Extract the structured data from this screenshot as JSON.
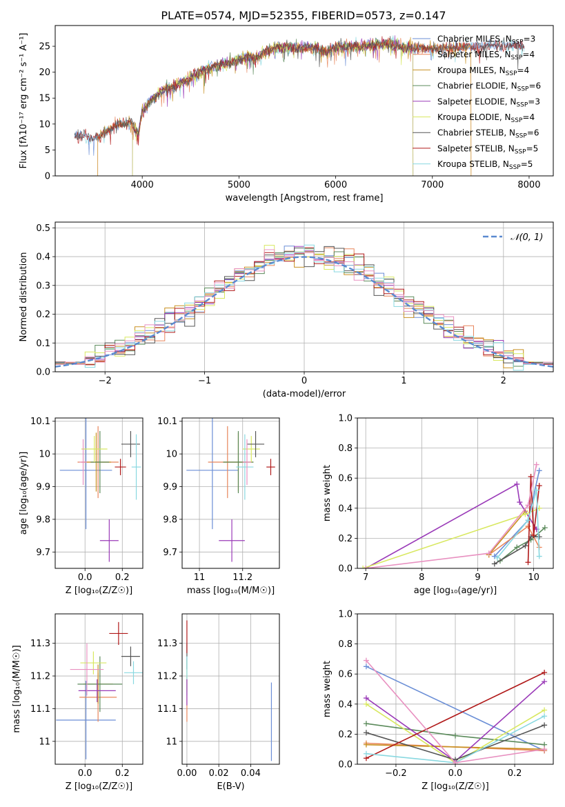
{
  "title": "PLATE=0574, MJD=52355, FIBERID=0573, z=0.147",
  "colors": {
    "Chabrier MILES": "#6a8ed6",
    "Salpeter MILES": "#e8855a",
    "Kroupa MILES": "#c89020",
    "Chabrier ELODIE": "#5a8a5a",
    "Salpeter ELODIE": "#9a3ab8",
    "Kroupa ELODIE": "#d8e860",
    "Chabrier STELIB": "#555555",
    "Salpeter STELIB": "#b01818",
    "Kroupa STELIB": "#88d8e0",
    "pink": "#e890c0",
    "gaussian": "#5a8ad0"
  },
  "chart_data": [
    {
      "id": "spectrum",
      "type": "line",
      "xlabel": "wavelength [Angstrom, rest frame]",
      "ylabel": "Flux [fλ10⁻¹⁷ erg cm⁻² s⁻¹ A⁻¹]",
      "xlim": [
        3100,
        8250
      ],
      "ylim": [
        0,
        29
      ],
      "xticks": [
        4000,
        5000,
        6000,
        7000,
        8000
      ],
      "yticks": [
        0,
        5,
        10,
        15,
        20,
        25
      ],
      "legend_position": "top-right",
      "legend": [
        {
          "name": "Chabrier MILES",
          "label": "Chabrier MILES, N",
          "sub": "SSP",
          "suffix": "=3"
        },
        {
          "name": "Salpeter MILES",
          "label": "Salpeter MILES, N",
          "sub": "SSP",
          "suffix": "=4"
        },
        {
          "name": "Kroupa MILES",
          "label": "Kroupa MILES, N",
          "sub": "SSP",
          "suffix": "=4"
        },
        {
          "name": "Chabrier ELODIE",
          "label": "Chabrier ELODIE, N",
          "sub": "SSP",
          "suffix": "=6"
        },
        {
          "name": "Salpeter ELODIE",
          "label": "Salpeter ELODIE, N",
          "sub": "SSP",
          "suffix": "=3"
        },
        {
          "name": "Kroupa ELODIE",
          "label": "Kroupa ELODIE, N",
          "sub": "SSP",
          "suffix": "=4"
        },
        {
          "name": "Chabrier STELIB",
          "label": "Chabrier STELIB, N",
          "sub": "SSP",
          "suffix": "=6"
        },
        {
          "name": "Salpeter STELIB",
          "label": "Salpeter STELIB, N",
          "sub": "SSP",
          "suffix": "=5"
        },
        {
          "name": "Kroupa STELIB",
          "label": "Kroupa STELIB, N",
          "sub": "SSP",
          "suffix": "=5"
        }
      ],
      "continuum": [
        [
          3300,
          7.6
        ],
        [
          3400,
          7.8
        ],
        [
          3500,
          7.0
        ],
        [
          3600,
          8.2
        ],
        [
          3700,
          9.5
        ],
        [
          3800,
          10.0
        ],
        [
          3880,
          10.5
        ],
        [
          3920,
          9.0
        ],
        [
          3960,
          8.0
        ],
        [
          4000,
          12.5
        ],
        [
          4100,
          14.8
        ],
        [
          4200,
          16.5
        ],
        [
          4300,
          17.0
        ],
        [
          4400,
          18.0
        ],
        [
          4500,
          18.8
        ],
        [
          4600,
          20.0
        ],
        [
          4700,
          20.8
        ],
        [
          4800,
          21.3
        ],
        [
          4900,
          21.8
        ],
        [
          5000,
          22.4
        ],
        [
          5100,
          23.0
        ],
        [
          5170,
          22.6
        ],
        [
          5250,
          23.8
        ],
        [
          5400,
          24.8
        ],
        [
          5600,
          24.6
        ],
        [
          5800,
          24.8
        ],
        [
          5890,
          23.8
        ],
        [
          6000,
          24.8
        ],
        [
          6200,
          25.0
        ],
        [
          6400,
          25.2
        ],
        [
          6563,
          25.6
        ],
        [
          6700,
          24.7
        ],
        [
          6900,
          24.6
        ],
        [
          7100,
          24.5
        ],
        [
          7300,
          24.8
        ],
        [
          7500,
          25.0
        ],
        [
          7700,
          25.2
        ],
        [
          7900,
          25.0
        ]
      ],
      "wavelength_limits": {
        "Salpeter MILES": [
          3540,
          7400
        ],
        "Kroupa MILES": [
          3540,
          7400
        ],
        "Salpeter ELODIE": [
          3900,
          6800
        ],
        "Kroupa ELODIE": [
          3900,
          6800
        ],
        "Chabrier ELODIE": [
          3900,
          6800
        ]
      }
    },
    {
      "id": "residuals",
      "type": "histogram",
      "xlabel": "(data-model)/error",
      "ylabel": "Normed distribution",
      "xlim": [
        -2.5,
        2.5
      ],
      "ylim": [
        0,
        0.52
      ],
      "xticks": [
        -2,
        -1,
        0,
        1,
        2
      ],
      "yticks": [
        0.0,
        0.1,
        0.2,
        0.3,
        0.4,
        0.5
      ],
      "legend_position": "top-right",
      "legend": [
        {
          "name": "N(0,1)",
          "label": "𝒩(0, 1)"
        }
      ],
      "bin_width": 0.1,
      "bin_start": -2.5
    },
    {
      "id": "z-vs-age",
      "type": "scatter",
      "xlabel": "Z [log₁₀(Z/Z☉)]",
      "ylabel": "age  [log₁₀(age/yr)]",
      "xlim": [
        -0.16,
        0.31
      ],
      "ylim": [
        9.65,
        10.11
      ],
      "xticks": [
        0.0,
        0.2
      ],
      "yticks": [
        9.7,
        9.8,
        9.9,
        10.0,
        10.1
      ],
      "points": [
        {
          "series": "Chabrier MILES",
          "x": 0.005,
          "y": 9.95,
          "xerr": 0.14,
          "yerr": 0.18
        },
        {
          "series": "Salpeter MILES",
          "x": 0.07,
          "y": 9.975,
          "xerr": 0.11,
          "yerr": 0.11
        },
        {
          "series": "Kroupa MILES",
          "x": 0.06,
          "y": 9.975,
          "xerr": 0.08,
          "yerr": 0.09
        },
        {
          "series": "Chabrier ELODIE",
          "x": 0.08,
          "y": 9.975,
          "xerr": 0.05,
          "yerr": 0.095
        },
        {
          "series": "Salpeter ELODIE",
          "x": 0.13,
          "y": 9.735,
          "xerr": 0.05,
          "yerr": 0.065
        },
        {
          "series": "Kroupa ELODIE",
          "x": 0.05,
          "y": 10.015,
          "xerr": 0.07,
          "yerr": 0.04
        },
        {
          "series": "Chabrier STELIB",
          "x": 0.245,
          "y": 10.03,
          "xerr": 0.05,
          "yerr": 0.04
        },
        {
          "series": "Salpeter STELIB",
          "x": 0.19,
          "y": 9.96,
          "xerr": 0.03,
          "yerr": 0.025
        },
        {
          "series": "Kroupa STELIB",
          "x": 0.275,
          "y": 9.96,
          "xerr": 0.025,
          "yerr": 0.1
        },
        {
          "series": "pink",
          "x": -0.01,
          "y": 9.975,
          "xerr": 0.02,
          "yerr": 0.07
        }
      ]
    },
    {
      "id": "mass-vs-age",
      "type": "scatter",
      "xlabel": "mass [log₁₀(M/M☉)]",
      "ylabel": "",
      "xlim": [
        10.92,
        11.37
      ],
      "ylim": [
        9.65,
        10.11
      ],
      "xticks": [
        11.0,
        11.2
      ],
      "yticks": [
        9.7,
        9.8,
        9.9,
        10.0,
        10.1
      ],
      "points": [
        {
          "series": "Chabrier MILES",
          "x": 11.06,
          "y": 9.95,
          "xerr": 0.12,
          "yerr": 0.18
        },
        {
          "series": "Salpeter MILES",
          "x": 11.13,
          "y": 9.975,
          "xerr": 0.09,
          "yerr": 0.11
        },
        {
          "series": "Kroupa MILES",
          "x": 11.18,
          "y": 9.975,
          "xerr": 0.07,
          "yerr": 0.09
        },
        {
          "series": "Chabrier ELODIE",
          "x": 11.18,
          "y": 9.975,
          "xerr": 0.07,
          "yerr": 0.095
        },
        {
          "series": "Salpeter ELODIE",
          "x": 11.15,
          "y": 9.735,
          "xerr": 0.06,
          "yerr": 0.065
        },
        {
          "series": "Kroupa ELODIE",
          "x": 11.24,
          "y": 10.015,
          "xerr": 0.04,
          "yerr": 0.04
        },
        {
          "series": "Chabrier STELIB",
          "x": 11.26,
          "y": 10.03,
          "xerr": 0.04,
          "yerr": 0.04
        },
        {
          "series": "Salpeter STELIB",
          "x": 11.33,
          "y": 9.96,
          "xerr": 0.02,
          "yerr": 0.025
        },
        {
          "series": "Kroupa STELIB",
          "x": 11.21,
          "y": 9.96,
          "xerr": 0.04,
          "yerr": 0.1
        },
        {
          "series": "pink",
          "x": 11.22,
          "y": 9.975,
          "xerr": 0.02,
          "yerr": 0.07
        }
      ]
    },
    {
      "id": "age-vs-weight",
      "type": "line",
      "xlabel": "age  [log₁₀(age/yr)]",
      "ylabel": "mass weight",
      "xlim": [
        6.85,
        10.35
      ],
      "ylim": [
        0,
        1
      ],
      "xticks": [
        7,
        8,
        9,
        10
      ],
      "yticks": [
        0.0,
        0.2,
        0.4,
        0.6,
        0.8,
        1.0
      ],
      "series": [
        {
          "name": "Chabrier MILES",
          "points": [
            [
              9.3,
              0.08
            ],
            [
              9.9,
              0.32
            ],
            [
              10.1,
              0.65
            ]
          ]
        },
        {
          "name": "Salpeter MILES",
          "points": [
            [
              9.2,
              0.09
            ],
            [
              9.9,
              0.28
            ],
            [
              10.1,
              0.14
            ]
          ]
        },
        {
          "name": "Kroupa MILES",
          "points": [
            [
              9.2,
              0.09
            ],
            [
              9.85,
              0.38
            ],
            [
              10.05,
              0.26
            ]
          ]
        },
        {
          "name": "Chabrier ELODIE",
          "points": [
            [
              9.4,
              0.05
            ],
            [
              9.7,
              0.14
            ],
            [
              9.95,
              0.19
            ],
            [
              10.2,
              0.27
            ]
          ]
        },
        {
          "name": "Salpeter ELODIE",
          "points": [
            [
              7.0,
              0.0
            ],
            [
              9.7,
              0.56
            ],
            [
              9.75,
              0.44
            ],
            [
              10.05,
              0.26
            ]
          ]
        },
        {
          "name": "Kroupa ELODIE",
          "points": [
            [
              6.95,
              0.0
            ],
            [
              9.85,
              0.36
            ],
            [
              10.1,
              0.4
            ]
          ]
        },
        {
          "name": "Chabrier STELIB",
          "points": [
            [
              9.3,
              0.03
            ],
            [
              9.85,
              0.15
            ],
            [
              9.95,
              0.21
            ],
            [
              10.1,
              0.21
            ]
          ]
        },
        {
          "name": "Salpeter STELIB",
          "points": [
            [
              9.9,
              0.04
            ],
            [
              9.95,
              0.61
            ],
            [
              10.0,
              0.22
            ],
            [
              10.1,
              0.55
            ]
          ]
        },
        {
          "name": "Kroupa STELIB",
          "points": [
            [
              9.35,
              0.07
            ],
            [
              9.9,
              0.32
            ],
            [
              10.05,
              0.52
            ],
            [
              10.1,
              0.08
            ]
          ]
        },
        {
          "name": "pink",
          "points": [
            [
              7.0,
              0.0
            ],
            [
              9.2,
              0.1
            ],
            [
              9.9,
              0.42
            ],
            [
              10.05,
              0.69
            ]
          ]
        }
      ]
    },
    {
      "id": "z-vs-mass",
      "type": "scatter",
      "xlabel": "Z [log₁₀(Z/Z☉)]",
      "ylabel": "mass [log₁₀(M/M☉)]",
      "xlim": [
        -0.16,
        0.31
      ],
      "ylim": [
        10.93,
        11.39
      ],
      "xticks": [
        0.0,
        0.2
      ],
      "yticks": [
        11.0,
        11.1,
        11.2,
        11.3
      ],
      "points": [
        {
          "series": "Chabrier MILES",
          "x": 0.005,
          "y": 11.065,
          "xerr": 0.16,
          "yerr": 0.12
        },
        {
          "series": "Salpeter MILES",
          "x": 0.07,
          "y": 11.135,
          "xerr": 0.1,
          "yerr": 0.075
        },
        {
          "series": "Kroupa MILES",
          "x": 0.07,
          "y": 11.175,
          "xerr": 0.08,
          "yerr": 0.06
        },
        {
          "series": "Chabrier ELODIE",
          "x": 0.08,
          "y": 11.175,
          "xerr": 0.12,
          "yerr": 0.085
        },
        {
          "series": "Salpeter ELODIE",
          "x": 0.065,
          "y": 11.155,
          "xerr": 0.1,
          "yerr": 0.035
        },
        {
          "series": "Kroupa ELODIE",
          "x": 0.045,
          "y": 11.24,
          "xerr": 0.07,
          "yerr": 0.035
        },
        {
          "series": "Chabrier STELIB",
          "x": 0.245,
          "y": 11.26,
          "xerr": 0.05,
          "yerr": 0.03
        },
        {
          "series": "Salpeter STELIB",
          "x": 0.18,
          "y": 11.33,
          "xerr": 0.05,
          "yerr": 0.035
        },
        {
          "series": "Kroupa STELIB",
          "x": 0.26,
          "y": 11.21,
          "xerr": 0.05,
          "yerr": 0.035
        },
        {
          "series": "pink",
          "x": 0.01,
          "y": 11.22,
          "xerr": 0.09,
          "yerr": 0.08
        }
      ]
    },
    {
      "id": "ebv-vs-mass",
      "type": "scatter",
      "xlabel": "E(B-V)",
      "ylabel": "",
      "xlim": [
        -0.003,
        0.058
      ],
      "ylim": [
        10.93,
        11.39
      ],
      "xticks": [
        0.0,
        0.02,
        0.04
      ],
      "yticks": [
        11.0,
        11.1,
        11.2,
        11.3
      ],
      "points": [
        {
          "series": "Chabrier MILES",
          "x": 0.053,
          "y": 11.06,
          "xerr": 0,
          "yerr": 0.12
        },
        {
          "series": "Salpeter MILES",
          "x": 0.0,
          "y": 11.13,
          "xerr": 0,
          "yerr": 0.07
        },
        {
          "series": "Kroupa ELODIE",
          "x": 0.0,
          "y": 11.2,
          "xerr": 0,
          "yerr": 0.05
        },
        {
          "series": "Chabrier STELIB",
          "x": 0.0,
          "y": 11.26,
          "xerr": 0,
          "yerr": 0.04
        },
        {
          "series": "Salpeter STELIB",
          "x": 0.0,
          "y": 11.32,
          "xerr": 0,
          "yerr": 0.05
        },
        {
          "series": "Kroupa STELIB",
          "x": 0.0,
          "y": 11.2,
          "xerr": 0,
          "yerr": 0.06
        },
        {
          "series": "Salpeter ELODIE",
          "x": 0.0,
          "y": 11.15,
          "xerr": 0,
          "yerr": 0.04
        }
      ]
    },
    {
      "id": "z-vs-weight",
      "type": "line",
      "xlabel": "Z [log₁₀(Z/Z☉)]",
      "ylabel": "mass weight",
      "xlim": [
        -0.33,
        0.33
      ],
      "ylim": [
        0,
        1
      ],
      "xticks": [
        -0.2,
        0.0,
        0.2
      ],
      "yticks": [
        0.0,
        0.2,
        0.4,
        0.6,
        0.8,
        1.0
      ],
      "series": [
        {
          "name": "Chabrier MILES",
          "points": [
            [
              -0.3,
              0.65
            ],
            [
              0.3,
              0.09
            ]
          ]
        },
        {
          "name": "Salpeter MILES",
          "points": [
            [
              -0.3,
              0.14
            ],
            [
              0.3,
              0.09
            ]
          ]
        },
        {
          "name": "Kroupa MILES",
          "points": [
            [
              -0.3,
              0.13
            ],
            [
              0.3,
              0.1
            ]
          ]
        },
        {
          "name": "Chabrier ELODIE",
          "points": [
            [
              -0.3,
              0.27
            ],
            [
              0.0,
              0.19
            ],
            [
              0.3,
              0.13
            ]
          ]
        },
        {
          "name": "Salpeter ELODIE",
          "points": [
            [
              -0.3,
              0.44
            ],
            [
              0.0,
              0.02
            ],
            [
              0.3,
              0.55
            ]
          ]
        },
        {
          "name": "Kroupa ELODIE",
          "points": [
            [
              -0.3,
              0.4
            ],
            [
              0.0,
              0.01
            ],
            [
              0.3,
              0.36
            ]
          ]
        },
        {
          "name": "Chabrier STELIB",
          "points": [
            [
              -0.3,
              0.21
            ],
            [
              0.0,
              0.03
            ],
            [
              0.3,
              0.26
            ]
          ]
        },
        {
          "name": "Salpeter STELIB",
          "points": [
            [
              -0.3,
              0.04
            ],
            [
              0.3,
              0.61
            ]
          ]
        },
        {
          "name": "Kroupa STELIB",
          "points": [
            [
              -0.3,
              0.07
            ],
            [
              0.0,
              0.01
            ],
            [
              0.3,
              0.32
            ]
          ]
        },
        {
          "name": "pink",
          "points": [
            [
              -0.3,
              0.69
            ],
            [
              0.0,
              0.01
            ],
            [
              0.3,
              0.1
            ]
          ]
        }
      ]
    }
  ]
}
